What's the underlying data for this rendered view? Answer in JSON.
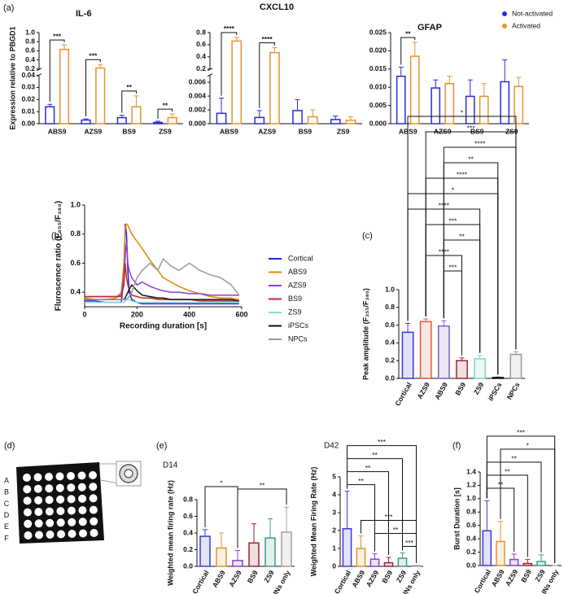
{
  "panel_labels": [
    "(a)",
    "(b)",
    "(c)",
    "(d)",
    "(e)",
    "(f)"
  ],
  "plate": {
    "rows": [
      "A",
      "B",
      "C",
      "D",
      "E",
      "F"
    ]
  },
  "chart_data": [
    {
      "type": "grouped-bar-panels",
      "ylabel": "Expression relative to PBGD1",
      "categories": [
        "ABS9",
        "AZS9",
        "BS9",
        "ZS9"
      ],
      "series": [
        {
          "name": "Not-activated",
          "color": "#2b2bd6"
        },
        {
          "name": "Activated",
          "color": "#e8922a"
        }
      ],
      "panels": [
        {
          "title": "IL-6",
          "values": [
            [
              0.014,
              0.003,
              0.005,
              0.001
            ],
            [
              0.63,
              0.22,
              0.014,
              0.005
            ]
          ],
          "errors": [
            [
              0.002,
              0.001,
              0.002,
              0.001
            ],
            [
              0.1,
              0.08,
              0.009,
              0.003
            ]
          ],
          "y_segments": [
            {
              "ylim": [
                0,
                0.04
              ],
              "yticks": [
                {
                  "value": 0,
                  "label": "0.00"
                },
                0.01,
                0.02,
                0.03,
                0.04
              ]
            },
            {
              "ylim": [
                0.2,
                1.0
              ],
              "yticks": [
                0.2,
                0.4,
                0.6,
                0.8,
                {
                  "value": 1,
                  "label": "1.0"
                }
              ]
            }
          ],
          "brackets": [
            {
              "category": "ABS9",
              "label": "***"
            },
            {
              "category": "AZS9",
              "label": "***"
            },
            {
              "category": "BS9",
              "label": "**"
            },
            {
              "category": "ZS9",
              "label": "**"
            }
          ]
        },
        {
          "title": "CXCL10",
          "values": [
            [
              0.0015,
              0.0009,
              0.0019,
              0.0006
            ],
            [
              0.66,
              0.47,
              0.001,
              0.0005
            ]
          ],
          "errors": [
            [
              0.0022,
              0.001,
              0.0016,
              0.0005
            ],
            [
              0.06,
              0.08,
              0.001,
              0.0005
            ]
          ],
          "y_segments": [
            {
              "ylim": [
                0,
                0.007
              ],
              "yticks": [
                {
                  "value": 0,
                  "label": "0.000"
                },
                0.002,
                0.004,
                0.006
              ]
            },
            {
              "ylim": [
                0.2,
                0.8
              ],
              "yticks": [
                0.2,
                0.4,
                0.6,
                0.8
              ]
            }
          ],
          "brackets": [
            {
              "category": "ABS9",
              "label": "****"
            },
            {
              "category": "AZS9",
              "label": "****"
            }
          ]
        },
        {
          "title": "GFAP",
          "values": [
            [
              0.013,
              0.0098,
              0.0075,
              0.0115
            ],
            [
              0.0185,
              0.011,
              0.0075,
              0.0102
            ]
          ],
          "errors": [
            [
              0.0025,
              0.0022,
              0.0045,
              0.006
            ],
            [
              0.0038,
              0.002,
              0.0035,
              0.0025
            ]
          ],
          "ylim": [
            0,
            0.025
          ],
          "yticks": [
            {
              "value": 0,
              "label": "0.000"
            },
            0.005,
            {
              "value": 0.01,
              "label": "0.010"
            },
            0.015,
            {
              "value": 0.02,
              "label": "0.020"
            },
            0.025
          ],
          "brackets": [
            {
              "category": "ABS9",
              "label": "**"
            }
          ]
        }
      ]
    },
    {
      "type": "line",
      "xlabel": "Recording duration [s]",
      "ylabel": "Fluroscence ratio (F₃₅₅/F₃₈₀)",
      "x": [
        0,
        40,
        80,
        120,
        140,
        150,
        155,
        160,
        165,
        170,
        180,
        200,
        220,
        250,
        280,
        300,
        330,
        360,
        400,
        440,
        480,
        520,
        560,
        590
      ],
      "xlim": [
        0,
        600
      ],
      "xticks": [
        0,
        200,
        400,
        600
      ],
      "ylim": [
        0.3,
        1.0
      ],
      "yticks": [
        0.4,
        0.6,
        0.8,
        {
          "value": 1,
          "label": "1.0"
        }
      ],
      "series": [
        {
          "name": "Cortical",
          "color": "#2424e0",
          "values": [
            0.34,
            0.34,
            0.33,
            0.33,
            0.33,
            0.5,
            0.87,
            0.8,
            0.55,
            0.4,
            0.35,
            0.33,
            0.32,
            0.32,
            0.32,
            0.32,
            0.32,
            0.32,
            0.32,
            0.32,
            0.32,
            0.32,
            0.32,
            0.32
          ]
        },
        {
          "name": "ABS9",
          "color": "#e08a00",
          "values": [
            0.36,
            0.35,
            0.35,
            0.36,
            0.4,
            0.6,
            0.85,
            0.87,
            0.86,
            0.84,
            0.8,
            0.75,
            0.7,
            0.62,
            0.55,
            0.5,
            0.47,
            0.44,
            0.41,
            0.39,
            0.37,
            0.36,
            0.36,
            0.35
          ]
        },
        {
          "name": "AZS9",
          "color": "#8a3fd6",
          "values": [
            0.37,
            0.37,
            0.37,
            0.37,
            0.38,
            0.5,
            0.65,
            0.75,
            0.6,
            0.55,
            0.5,
            0.45,
            0.47,
            0.44,
            0.42,
            0.41,
            0.4,
            0.4,
            0.39,
            0.39,
            0.38,
            0.38,
            0.38,
            0.38
          ]
        },
        {
          "name": "BS9",
          "color": "#c0282d",
          "values": [
            0.37,
            0.37,
            0.37,
            0.37,
            0.37,
            0.45,
            0.6,
            0.5,
            0.45,
            0.42,
            0.38,
            0.37,
            0.36,
            0.36,
            0.35,
            0.35,
            0.35,
            0.35,
            0.35,
            0.34,
            0.34,
            0.34,
            0.34,
            0.34
          ]
        },
        {
          "name": "ZS9",
          "color": "#7fe0d0",
          "values": [
            0.33,
            0.33,
            0.33,
            0.33,
            0.33,
            0.33,
            0.34,
            0.35,
            0.35,
            0.35,
            0.34,
            0.33,
            0.33,
            0.33,
            0.33,
            0.33,
            0.33,
            0.33,
            0.33,
            0.33,
            0.33,
            0.33,
            0.33,
            0.33
          ]
        },
        {
          "name": "iPSCs",
          "color": "#111111",
          "values": [
            0.35,
            0.35,
            0.35,
            0.35,
            0.35,
            0.35,
            0.36,
            0.38,
            0.4,
            0.42,
            0.45,
            0.41,
            0.38,
            0.37,
            0.36,
            0.36,
            0.35,
            0.35,
            0.35,
            0.35,
            0.35,
            0.35,
            0.35,
            0.34
          ]
        },
        {
          "name": "NPCs",
          "color": "#999999",
          "values": [
            0.35,
            0.35,
            0.35,
            0.35,
            0.35,
            0.35,
            0.35,
            0.35,
            0.36,
            0.37,
            0.4,
            0.5,
            0.55,
            0.6,
            0.55,
            0.63,
            0.58,
            0.55,
            0.6,
            0.55,
            0.52,
            0.5,
            0.45,
            0.38
          ]
        }
      ]
    },
    {
      "type": "bar",
      "ylabel": "Peak amplitude (F₃₅₅/F₃₈₀)",
      "categories": [
        "Cortical",
        "AZS9",
        "ABS9",
        "BS9",
        "ZS9",
        "iPSCs",
        "NPCs"
      ],
      "values": [
        0.52,
        0.64,
        0.59,
        0.2,
        0.22,
        0.01,
        0.27
      ],
      "errors": [
        0.1,
        0.03,
        0.06,
        0.03,
        0.04,
        0.005,
        0.03
      ],
      "colors": [
        "#3a3ad8",
        "#e2583e",
        "#7b5fc9",
        "#a0253a",
        "#7fd8c8",
        "#111111",
        "#9a9a9a"
      ],
      "ylim": [
        0,
        1.0
      ],
      "yticks": [
        {
          "value": 0,
          "label": "0.0"
        },
        0.2,
        0.4,
        0.6,
        0.8,
        {
          "value": 1,
          "label": "1.0"
        }
      ],
      "brackets": [
        {
          "pair": [
            "ABS9",
            "BS9"
          ],
          "label": "***"
        },
        {
          "pair": [
            "AZS9",
            "BS9"
          ],
          "label": "****"
        },
        {
          "pair": [
            "ABS9",
            "ZS9"
          ],
          "label": "**"
        },
        {
          "pair": [
            "AZS9",
            "ZS9"
          ],
          "label": "***"
        },
        {
          "pair": [
            "Cortical",
            "ZS9"
          ],
          "label": "****"
        },
        {
          "pair": [
            "Cortical",
            "iPSCs"
          ],
          "label": "*"
        },
        {
          "pair": [
            "AZS9",
            "iPSCs"
          ],
          "label": "****"
        },
        {
          "pair": [
            "ABS9",
            "iPSCs"
          ],
          "label": "**"
        },
        {
          "pair": [
            "ABS9",
            "NPCs"
          ],
          "label": "****"
        },
        {
          "pair": [
            "AZS9",
            "NPCs"
          ],
          "label": "***"
        },
        {
          "pair": [
            "Cortical",
            "NPCs"
          ],
          "label": "*"
        }
      ]
    },
    {
      "type": "bar",
      "title": "D14",
      "ylabel": "Weighted mean firing rate (Hz)",
      "categories": [
        "Cortical",
        "ABS9",
        "AZS9",
        "BS9",
        "ZS9",
        "INs only"
      ],
      "values": [
        0.36,
        0.22,
        0.07,
        0.28,
        0.34,
        0.41
      ],
      "errors": [
        0.08,
        0.18,
        0.12,
        0.23,
        0.23,
        0.3
      ],
      "colors": [
        "#3a3ad8",
        "#e8922a",
        "#8c3fd0",
        "#9b2335",
        "#3b9a8a",
        "#a0a0a0"
      ],
      "ylim": [
        0,
        0.8
      ],
      "yticks": [
        {
          "value": 0,
          "label": "0.0"
        },
        0.2,
        0.4,
        0.6,
        0.8
      ],
      "brackets": [
        {
          "pair": [
            "AZS9",
            "INs only"
          ],
          "label": "**"
        },
        {
          "pair": [
            "Cortical",
            "AZS9"
          ],
          "label": "*"
        }
      ]
    },
    {
      "type": "bar",
      "title": "D42",
      "ylabel": "Weighted Mean Firing Rate (Hz)",
      "categories": [
        "Cortical",
        "ABS9",
        "AZS9",
        "BS9",
        "ZS9",
        "INs only"
      ],
      "values": [
        2.1,
        1.0,
        0.4,
        0.2,
        0.45,
        0.03
      ],
      "errors": [
        2.1,
        0.7,
        0.3,
        0.3,
        0.3,
        0.02
      ],
      "colors": [
        "#3a3ad8",
        "#e8922a",
        "#8c3fd0",
        "#9b2335",
        "#3b9a8a",
        "#a0a0a0"
      ],
      "ylim": [
        0,
        5
      ],
      "yticks": [
        0,
        1,
        2,
        3,
        4,
        5
      ],
      "brackets": [
        {
          "pair": [
            "ZS9",
            "INs only"
          ],
          "label": "***"
        },
        {
          "pair": [
            "AZS9",
            "INs only"
          ],
          "label": "**"
        },
        {
          "pair": [
            "ABS9",
            "INs only"
          ],
          "label": "***"
        },
        {
          "pair": [
            "Cortical",
            "AZS9"
          ],
          "label": "**"
        },
        {
          "pair": [
            "Cortical",
            "BS9"
          ],
          "label": "**"
        },
        {
          "pair": [
            "Cortical",
            "ZS9"
          ],
          "label": "**"
        },
        {
          "pair": [
            "Cortical",
            "INs only"
          ],
          "label": "***"
        }
      ]
    },
    {
      "type": "bar",
      "ylabel": "Burst Duration [s]",
      "categories": [
        "Cortical",
        "ABS9",
        "AZS9",
        "BS9",
        "ZS9",
        "INs only"
      ],
      "values": [
        0.52,
        0.36,
        0.09,
        0.03,
        0.06,
        0
      ],
      "errors": [
        0.45,
        0.3,
        0.08,
        0.06,
        0.1,
        0
      ],
      "colors": [
        "#3a3ad8",
        "#e8922a",
        "#8c3fd0",
        "#9b2335",
        "#3b9a8a",
        "#a0a0a0"
      ],
      "ylim": [
        0,
        1.4
      ],
      "yticks": [
        {
          "value": 0,
          "label": "0.0"
        },
        0.2,
        0.4,
        0.6,
        0.8,
        {
          "value": 1,
          "label": "1.0"
        },
        1.2,
        1.4
      ],
      "brackets": [
        {
          "pair": [
            "Cortical",
            "AZS9"
          ],
          "label": "**"
        },
        {
          "pair": [
            "Cortical",
            "BS9"
          ],
          "label": "**"
        },
        {
          "pair": [
            "Cortical",
            "ZS9"
          ],
          "label": "**"
        },
        {
          "pair": [
            "ABS9",
            "INs only"
          ],
          "label": "*"
        },
        {
          "pair": [
            "Cortical",
            "INs only"
          ],
          "label": "***"
        }
      ]
    }
  ]
}
